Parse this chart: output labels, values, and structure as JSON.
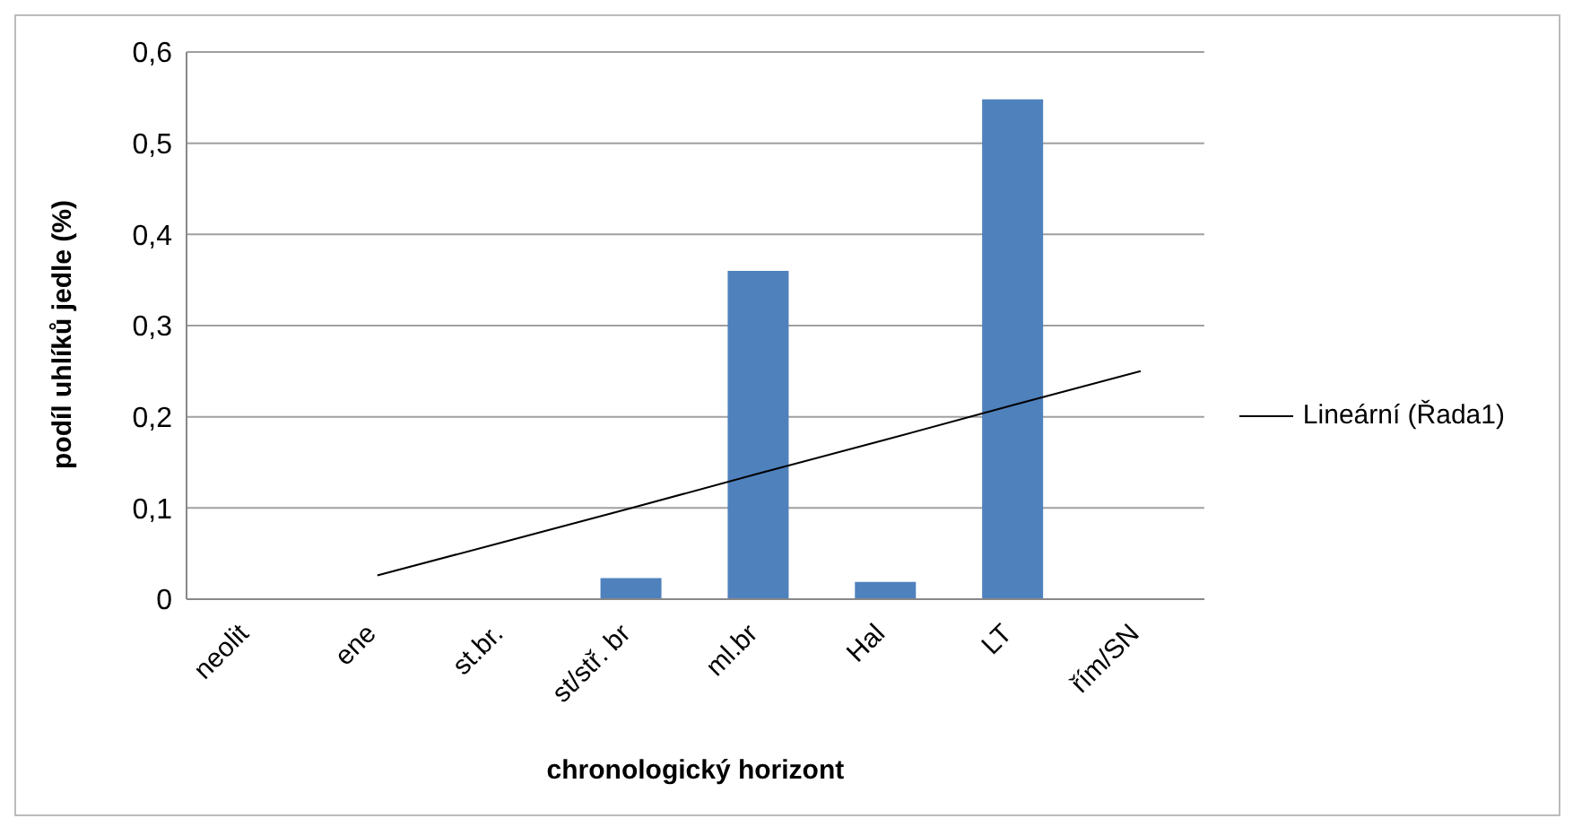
{
  "chart_data": {
    "type": "bar",
    "xlabel": "chronologický horizont",
    "ylabel": "podíl uhlíků jedle (%)",
    "categories": [
      "neolit",
      "ene",
      "st.br.",
      "st/stř. br",
      "ml.br",
      "Hal",
      "LT",
      "řím/SN"
    ],
    "series": [
      {
        "color": "#4f81bd",
        "values": [
          0,
          0,
          0,
          0.023,
          0.36,
          0.019,
          0.548,
          0
        ]
      },
      {
        "type": "line",
        "name": "Lineární (Řada1)",
        "color": "#000000",
        "values": [
          null,
          0.026,
          0.063,
          0.1,
          0.138,
          0.175,
          0.213,
          0.25
        ]
      }
    ],
    "ylim": [
      0,
      0.6
    ],
    "yticks": [
      0,
      {
        "value": 0.1,
        "label": "0,1"
      },
      {
        "value": 0.2,
        "label": "0,2"
      },
      {
        "value": 0.3,
        "label": "0,3"
      },
      {
        "value": 0.4,
        "label": "0,4"
      },
      {
        "value": 0.5,
        "label": "0,5"
      },
      {
        "value": 0.6,
        "label": "0,6"
      }
    ],
    "grid": "y",
    "legend": "right",
    "marker": "none"
  }
}
